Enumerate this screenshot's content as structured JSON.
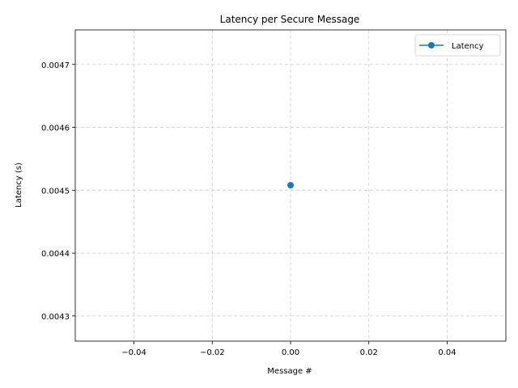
{
  "chart_data": {
    "type": "line",
    "title": "Latency per Secure Message",
    "xlabel": "Message #",
    "ylabel": "Latency (s)",
    "xlim": [
      -0.055,
      0.055
    ],
    "ylim": [
      0.00426,
      0.004755
    ],
    "x_ticks": [
      -0.04,
      -0.02,
      0.0,
      0.02,
      0.04
    ],
    "x_tick_labels": [
      "−0.04",
      "−0.02",
      "0.00",
      "0.02",
      "0.04"
    ],
    "y_ticks": [
      0.0043,
      0.0044,
      0.0045,
      0.0046,
      0.0047
    ],
    "y_tick_labels": [
      "0.0043",
      "0.0044",
      "0.0045",
      "0.0046",
      "0.0047"
    ],
    "grid": true,
    "legend_position": "top-right",
    "series": [
      {
        "name": "Latency",
        "color": "#1f77b4",
        "marker": "circle",
        "x": [
          0
        ],
        "y": [
          0.004508
        ]
      }
    ]
  }
}
